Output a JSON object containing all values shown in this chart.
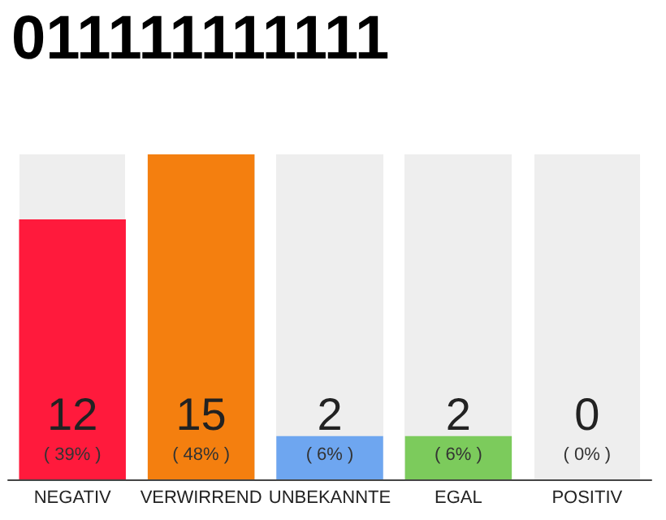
{
  "chart_data": {
    "type": "bar",
    "title": "011111111111",
    "categories": [
      "NEGATIV",
      "VERWIRREND",
      "UNBEKANNTE",
      "EGAL",
      "POSITIV"
    ],
    "values": [
      12,
      15,
      2,
      2,
      0
    ],
    "colors": [
      "#ff1a3c",
      "#f47f0f",
      "#6ea6f0",
      "#7ccb5c",
      "#cccccc"
    ],
    "value_labels": [
      "12\n( 39% )",
      "15\n( 48% )",
      "2\n( 6% )",
      "2\n( 6% )",
      "0\n( 0% )"
    ]
  }
}
